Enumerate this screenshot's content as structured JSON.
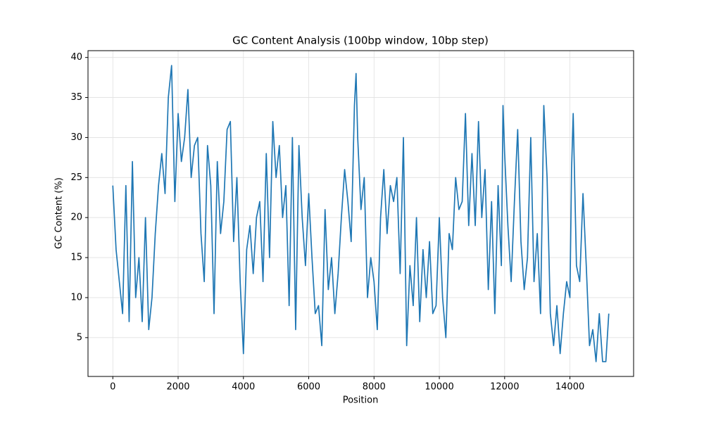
{
  "chart_data": {
    "type": "line",
    "title": "GC Content Analysis (100bp window, 10bp step)",
    "x_label": "Position",
    "y_label": "GC Content (%)",
    "series": [
      {
        "name": "GC Content",
        "color": "#1f77b4",
        "x": [
          0,
          100,
          200,
          300,
          400,
          500,
          600,
          700,
          800,
          900,
          1000,
          1100,
          1200,
          1300,
          1400,
          1500,
          1600,
          1700,
          1800,
          1900,
          2000,
          2100,
          2200,
          2300,
          2400,
          2500,
          2600,
          2700,
          2800,
          2900,
          3000,
          3100,
          3200,
          3300,
          3400,
          3500,
          3600,
          3700,
          3800,
          3900,
          4000,
          4100,
          4200,
          4300,
          4400,
          4500,
          4600,
          4700,
          4800,
          4900,
          5000,
          5100,
          5200,
          5300,
          5400,
          5500,
          5600,
          5700,
          5800,
          5900,
          6000,
          6100,
          6200,
          6300,
          6400,
          6500,
          6600,
          6700,
          6800,
          6900,
          7000,
          7100,
          7200,
          7300,
          7400,
          7450,
          7500,
          7600,
          7700,
          7800,
          7900,
          8000,
          8100,
          8200,
          8300,
          8400,
          8500,
          8600,
          8700,
          8800,
          8900,
          9000,
          9100,
          9200,
          9300,
          9400,
          9500,
          9600,
          9700,
          9800,
          9900,
          10000,
          10100,
          10200,
          10300,
          10400,
          10500,
          10600,
          10700,
          10800,
          10900,
          11000,
          11100,
          11200,
          11300,
          11400,
          11500,
          11600,
          11700,
          11800,
          11900,
          11950,
          12000,
          12100,
          12200,
          12300,
          12400,
          12500,
          12600,
          12700,
          12800,
          12900,
          13000,
          13100,
          13200,
          13300,
          13400,
          13500,
          13600,
          13700,
          13800,
          13900,
          14000,
          14050,
          14100,
          14200,
          14300,
          14400,
          14500,
          14600,
          14700,
          14800,
          14900,
          15000,
          15100,
          15190
        ],
        "values": [
          24,
          16,
          12,
          8,
          24,
          7,
          27,
          10,
          15,
          7,
          20,
          6,
          10,
          18,
          24,
          28,
          23,
          35,
          39,
          22,
          33,
          27,
          30,
          36,
          25,
          29,
          30,
          18,
          12,
          29,
          24,
          8,
          27,
          18,
          22,
          31,
          32,
          17,
          25,
          12,
          3,
          16,
          19,
          13,
          20,
          22,
          12,
          28,
          15,
          32,
          25,
          29,
          20,
          24,
          9,
          30,
          6,
          29,
          20,
          14,
          23,
          15,
          8,
          9,
          4,
          21,
          11,
          15,
          8,
          13,
          20,
          26,
          22,
          17,
          34,
          38,
          30,
          21,
          25,
          10,
          15,
          12,
          6,
          20,
          26,
          18,
          24,
          22,
          25,
          13,
          30,
          4,
          14,
          9,
          20,
          7,
          16,
          10,
          17,
          8,
          9,
          20,
          10,
          5,
          18,
          16,
          25,
          21,
          22,
          33,
          19,
          28,
          19,
          32,
          20,
          26,
          11,
          22,
          8,
          24,
          14,
          34,
          28,
          19,
          12,
          22,
          31,
          17,
          11,
          15,
          30,
          12,
          18,
          8,
          34,
          25,
          8,
          4,
          9,
          3,
          8,
          12,
          10,
          26,
          33,
          14,
          12,
          23,
          14,
          4,
          6,
          2,
          8,
          2,
          2,
          8
        ]
      }
    ],
    "xlim": [
      -760,
      15950
    ],
    "ylim": [
      0.15,
      40.85
    ],
    "xticks": [
      0,
      2000,
      4000,
      6000,
      8000,
      10000,
      12000,
      14000
    ],
    "yticks": [
      5,
      10,
      15,
      20,
      25,
      30,
      35,
      40
    ],
    "grid": true
  }
}
